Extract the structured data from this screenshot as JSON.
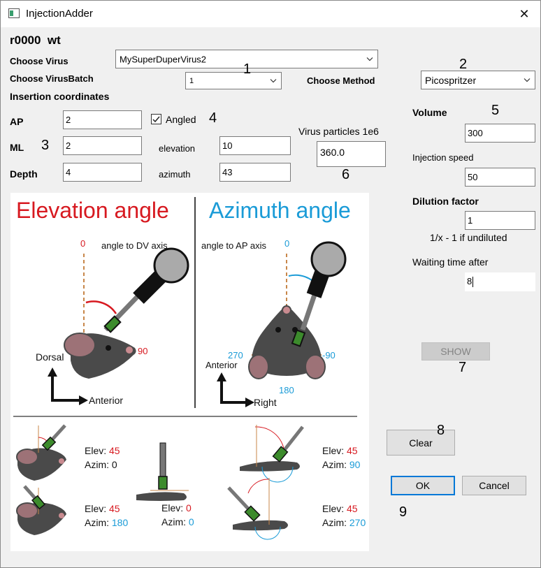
{
  "window": {
    "title": "InjectionAdder",
    "close_glyph": "✕"
  },
  "header": {
    "id_text": "r0000",
    "genotype": "wt"
  },
  "virus": {
    "label": "Choose Virus",
    "selected": "MySuperDuperVirus2",
    "batch_label": "Choose VirusBatch",
    "batch_selected": "1",
    "method_label": "Choose Method",
    "method_selected": "Picospritzer"
  },
  "coords": {
    "section_label": "Insertion coordinates",
    "ap_label": "AP",
    "ap_value": "2",
    "ml_label": "ML",
    "ml_value": "2",
    "depth_label": "Depth",
    "depth_value": "4",
    "angled_label": "Angled",
    "angled_checked": true,
    "elevation_label": "elevation",
    "elevation_value": "10",
    "azimuth_label": "azimuth",
    "azimuth_value": "43"
  },
  "particles": {
    "label": "Virus particles 1e6",
    "value": "360.0"
  },
  "volume": {
    "label": "Volume",
    "value": "300"
  },
  "speed": {
    "label": "Injection speed",
    "value": "50"
  },
  "dilution": {
    "label": "Dilution factor",
    "value": "1",
    "hint": "1/x - 1 if undiluted"
  },
  "waiting": {
    "label": "Waiting time after",
    "value": "8"
  },
  "buttons": {
    "show": "SHOW",
    "clear": "Clear",
    "ok": "OK",
    "cancel": "Cancel"
  },
  "annotations": [
    "1",
    "2",
    "3",
    "4",
    "5",
    "6",
    "7",
    "8",
    "9"
  ],
  "figure": {
    "elev_title": "Elevation angle",
    "azim_title": "Azimuth angle",
    "angle_dv": "angle to DV axis",
    "angle_ap": "angle to AP axis",
    "zero": "0",
    "ninety": "90",
    "neg_ninety": "-90",
    "two_seventy": "270",
    "one_eighty": "180",
    "dorsal": "Dorsal",
    "anterior": "Anterior",
    "anterior2": "Anterior",
    "right": "Right",
    "elev_prefix": "Elev:",
    "azim_prefix": "Azim:",
    "examples": [
      {
        "elev": "45",
        "azim": "0"
      },
      {
        "elev": "0",
        "azim": "0"
      },
      {
        "elev": "45",
        "azim": "90"
      },
      {
        "elev": "45",
        "azim": "180"
      },
      {
        "elev": "45",
        "azim": "270"
      }
    ]
  },
  "colors": {
    "red": "#d71920",
    "blue": "#1a9bd7",
    "brown": "#c8874a",
    "accent": "#0078d7"
  }
}
